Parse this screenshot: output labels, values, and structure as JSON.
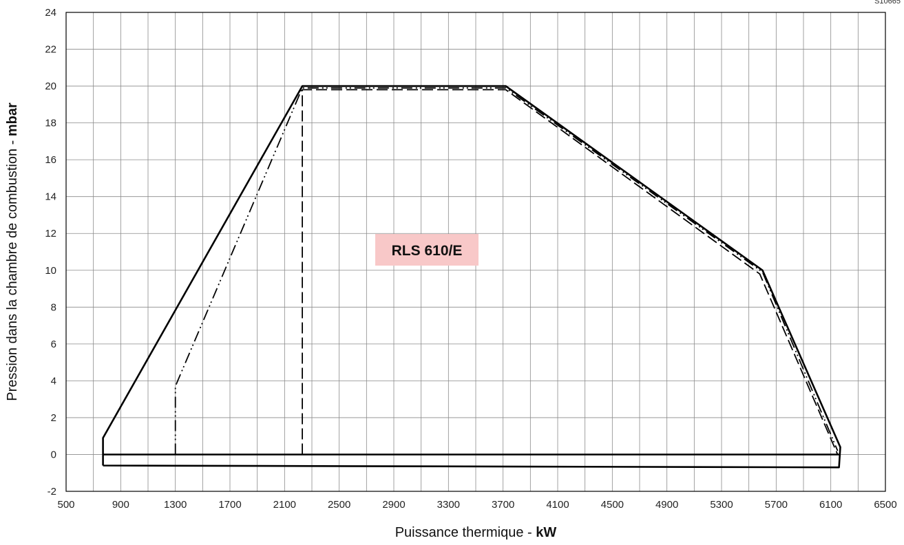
{
  "chart_data": {
    "type": "line",
    "title": "",
    "xlabel": {
      "text": "Puissance thermique - ",
      "unit": "kW"
    },
    "ylabel": {
      "text": "Pression dans la chambre de combustion - ",
      "unit": "mbar"
    },
    "xlim": [
      500,
      6500
    ],
    "ylim": [
      -2,
      24
    ],
    "xticks": [
      500,
      900,
      1300,
      1700,
      2100,
      2500,
      2900,
      3300,
      3700,
      4100,
      4500,
      4900,
      5300,
      5700,
      6100,
      6500
    ],
    "yticks": [
      -2,
      0,
      2,
      4,
      6,
      8,
      10,
      12,
      14,
      16,
      18,
      20,
      22,
      24
    ],
    "minor_x_grid_step": 200,
    "grid": true,
    "annotation": "RLS 610/E",
    "annotation_bg": "#f8c8c8",
    "corner_code": "S10665",
    "series": [
      {
        "style": "solid",
        "x": [
          770,
          770,
          2230,
          3720,
          5600,
          6170,
          6160,
          770
        ],
        "y": [
          -0.6,
          0.9,
          20,
          20,
          10,
          0.4,
          -0.7,
          -0.6
        ]
      },
      {
        "style": "solid",
        "x": [
          770,
          6160
        ],
        "y": [
          0,
          0
        ]
      },
      {
        "style": "dash-dot-dot",
        "x": [
          1300,
          1300,
          2230,
          3720,
          5600,
          6150
        ],
        "y": [
          0,
          3.7,
          19.9,
          19.9,
          9.9,
          0.2
        ]
      },
      {
        "style": "dashed",
        "x": [
          2230,
          2230,
          3720,
          5580,
          6150
        ],
        "y": [
          0,
          19.8,
          19.8,
          9.8,
          0
        ]
      }
    ]
  }
}
